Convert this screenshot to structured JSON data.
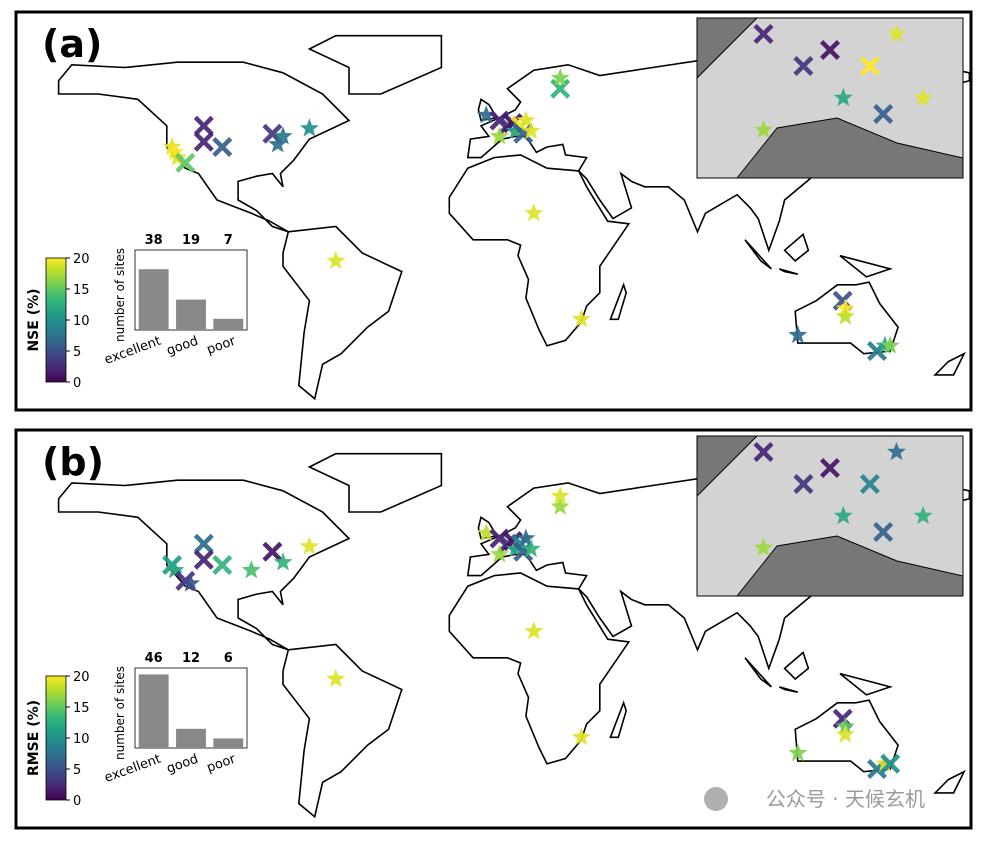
{
  "panels": [
    {
      "label": "(a)",
      "sites": {
        "lon": [
          -122,
          -121,
          -120,
          -117,
          -110,
          -110,
          -103,
          -84,
          -80,
          -70,
          -82,
          -60,
          15,
          33,
          132,
          133,
          133,
          115,
          145,
          148,
          150,
          25,
          25,
          -3,
          2,
          5,
          7,
          10,
          12,
          8,
          11,
          14,
          2
        ],
        "lat": [
          40,
          38,
          36,
          34,
          48,
          42,
          40,
          45,
          44,
          47,
          41,
          -3,
          15,
          -25,
          -18,
          -21,
          -24,
          -31,
          -37,
          -35,
          -35,
          62,
          66,
          52,
          50,
          48,
          49,
          48,
          50,
          46,
          45,
          46,
          44
        ],
        "values": [
          19,
          20,
          19,
          15,
          2,
          2,
          6,
          3,
          8,
          10,
          7,
          19,
          19,
          19,
          5,
          20,
          18,
          7,
          8,
          12,
          16,
          13,
          16,
          7,
          2,
          3,
          1,
          20,
          19,
          12,
          6,
          19,
          17
        ],
        "markers": [
          "star",
          "star",
          "star",
          "cross",
          "cross",
          "cross",
          "cross",
          "cross",
          "star",
          "star",
          "star",
          "star",
          "star",
          "star",
          "cross",
          "star",
          "star",
          "star",
          "cross",
          "star",
          "star",
          "cross",
          "star",
          "star",
          "cross",
          "cross",
          "cross",
          "cross",
          "star",
          "star",
          "cross",
          "star",
          "star"
        ]
      },
      "colorbar": {
        "label": "NSE (%)",
        "lim": [
          0,
          20
        ],
        "ticks": [
          0,
          5,
          10,
          15,
          20
        ]
      },
      "inset_chart": {
        "type": "bar",
        "ylabel": "number of sites",
        "categories": [
          "excellent",
          "good",
          "poor"
        ],
        "values": [
          38,
          19,
          7
        ],
        "color": "#888888",
        "ylim": [
          0,
          50
        ]
      }
    },
    {
      "label": "(b)",
      "sites": {
        "lon": [
          -122,
          -121,
          -117,
          -115,
          -110,
          -110,
          -103,
          -92,
          -84,
          -80,
          -70,
          -60,
          15,
          33,
          132,
          133,
          133,
          115,
          145,
          148,
          150,
          25,
          25,
          -3,
          2,
          5,
          7,
          10,
          12,
          8,
          11,
          14,
          2
        ],
        "lat": [
          40,
          38,
          34,
          33,
          48,
          42,
          40,
          38,
          45,
          41,
          47,
          -3,
          15,
          -25,
          -18,
          -21,
          -24,
          -31,
          -37,
          -35,
          -35,
          62,
          66,
          52,
          50,
          48,
          49,
          48,
          50,
          46,
          45,
          46,
          44
        ],
        "values": [
          11,
          12,
          3,
          5,
          7,
          2,
          13,
          14,
          1,
          13,
          19,
          19,
          19,
          19,
          2,
          15,
          19,
          16,
          8,
          19,
          10,
          17,
          19,
          18,
          2,
          3,
          1,
          9,
          7,
          12,
          6,
          13,
          17
        ],
        "markers": [
          "cross",
          "star",
          "cross",
          "star",
          "cross",
          "cross",
          "cross",
          "star",
          "cross",
          "star",
          "star",
          "star",
          "star",
          "star",
          "cross",
          "star",
          "star",
          "star",
          "cross",
          "star",
          "cross",
          "star",
          "star",
          "star",
          "cross",
          "cross",
          "cross",
          "cross",
          "star",
          "star",
          "cross",
          "star",
          "star"
        ]
      },
      "colorbar": {
        "label": "RMSE (%)",
        "lim": [
          0,
          20
        ],
        "ticks": [
          0,
          5,
          10,
          15,
          20
        ]
      },
      "inset_chart": {
        "type": "bar",
        "ylabel": "number of sites",
        "categories": [
          "excellent",
          "good",
          "poor"
        ],
        "values": [
          46,
          12,
          6
        ],
        "color": "#888888",
        "ylim": [
          0,
          50
        ]
      }
    }
  ],
  "watermark": "公众号 · 天候玄机"
}
